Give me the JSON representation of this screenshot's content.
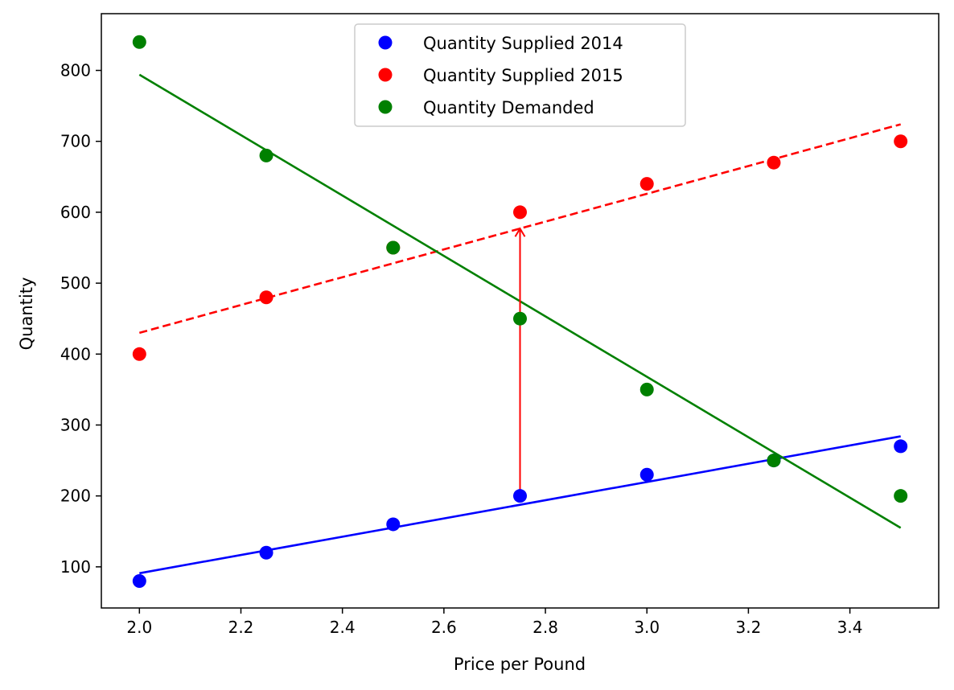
{
  "chart_data": {
    "type": "scatter",
    "xlabel": "Price per Pound",
    "ylabel": "Quantity",
    "xlim": [
      1.925,
      3.575
    ],
    "ylim": [
      42,
      880
    ],
    "x_ticks": [
      2.0,
      2.2,
      2.4,
      2.6,
      2.8,
      3.0,
      3.2,
      3.4
    ],
    "x_tick_labels": [
      "2.0",
      "2.2",
      "2.4",
      "2.6",
      "2.8",
      "3.0",
      "3.2",
      "3.4"
    ],
    "y_ticks": [
      100,
      200,
      300,
      400,
      500,
      600,
      700,
      800
    ],
    "y_tick_labels": [
      "100",
      "200",
      "300",
      "400",
      "500",
      "600",
      "700",
      "800"
    ],
    "grid": false,
    "legend_position": "top-center",
    "series": [
      {
        "name": "Quantity Supplied 2014",
        "color": "#0000ff",
        "x": [
          2.0,
          2.25,
          2.5,
          2.75,
          3.0,
          3.25,
          3.5
        ],
        "y": [
          80,
          120,
          160,
          200,
          230,
          250,
          270
        ],
        "fit_line": {
          "x": [
            2.0,
            3.5
          ],
          "y": [
            91,
            284
          ],
          "style": "solid"
        }
      },
      {
        "name": "Quantity Supplied 2015",
        "color": "#ff0000",
        "x": [
          2.0,
          2.25,
          2.5,
          2.75,
          3.0,
          3.25,
          3.5
        ],
        "y": [
          400,
          480,
          550,
          600,
          640,
          670,
          700
        ],
        "fit_line": {
          "x": [
            2.0,
            3.5
          ],
          "y": [
            430,
            724
          ],
          "style": "dashed"
        }
      },
      {
        "name": "Quantity Demanded",
        "color": "#008000",
        "x": [
          2.0,
          2.25,
          2.5,
          2.75,
          3.0,
          3.25,
          3.5
        ],
        "y": [
          840,
          680,
          550,
          450,
          350,
          250,
          200
        ],
        "fit_line": {
          "x": [
            2.0,
            3.5
          ],
          "y": [
            794,
            155
          ],
          "style": "solid"
        }
      }
    ],
    "annotations": [
      {
        "type": "arrow",
        "color": "#ff0000",
        "x_start": 2.75,
        "y_start": 193,
        "x_end": 2.75,
        "y_end": 577
      }
    ]
  }
}
